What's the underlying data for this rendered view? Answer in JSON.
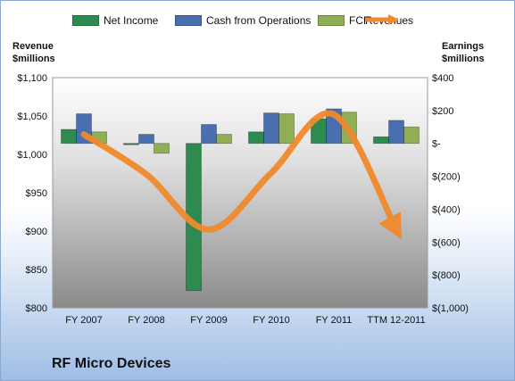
{
  "legend": {
    "items": [
      {
        "label": "Net Income",
        "color": "#2e8b50"
      },
      {
        "label": "Cash from Operations",
        "color": "#4a6fb0"
      },
      {
        "label": "FCF",
        "color": "#8fae55"
      },
      {
        "label": "Revenues",
        "color": "#f08a2c"
      }
    ]
  },
  "left_axis_title": {
    "line1": "Revenue",
    "line2": "$millions"
  },
  "right_axis_title": {
    "line1": "Earnings",
    "line2": "$millions"
  },
  "company": "RF Micro Devices",
  "chart_data": {
    "type": "bar",
    "categories": [
      "FY 2007",
      "FY 2008",
      "FY 2009",
      "FY 2010",
      "FY 2011",
      "TTM 12-2011"
    ],
    "series": [
      {
        "name": "Net Income",
        "axis": "right",
        "color": "#2e8b50",
        "values": [
          85,
          -2,
          -895,
          70,
          150,
          40
        ]
      },
      {
        "name": "Cash from Operations",
        "axis": "right",
        "color": "#4a6fb0",
        "values": [
          180,
          55,
          115,
          185,
          210,
          140
        ]
      },
      {
        "name": "FCF",
        "axis": "right",
        "color": "#8fae55",
        "values": [
          70,
          -60,
          55,
          180,
          190,
          100
        ]
      },
      {
        "name": "Revenues",
        "axis": "left",
        "type": "line",
        "color": "#f08a2c",
        "values": [
          1026,
          974,
          902,
          976,
          1052,
          902
        ]
      }
    ],
    "ylim_left": [
      800,
      1100
    ],
    "ylim_right": [
      -1000,
      400
    ],
    "y_ticks_left": [
      "$800",
      "$850",
      "$900",
      "$950",
      "$1,000",
      "$1,050",
      "$1,100"
    ],
    "y_ticks_right": [
      "$(1,000)",
      "$(800)",
      "$(600)",
      "$(400)",
      "$(200)",
      "$-",
      "$200",
      "$400"
    ],
    "grid": false,
    "legend_position": "top"
  }
}
